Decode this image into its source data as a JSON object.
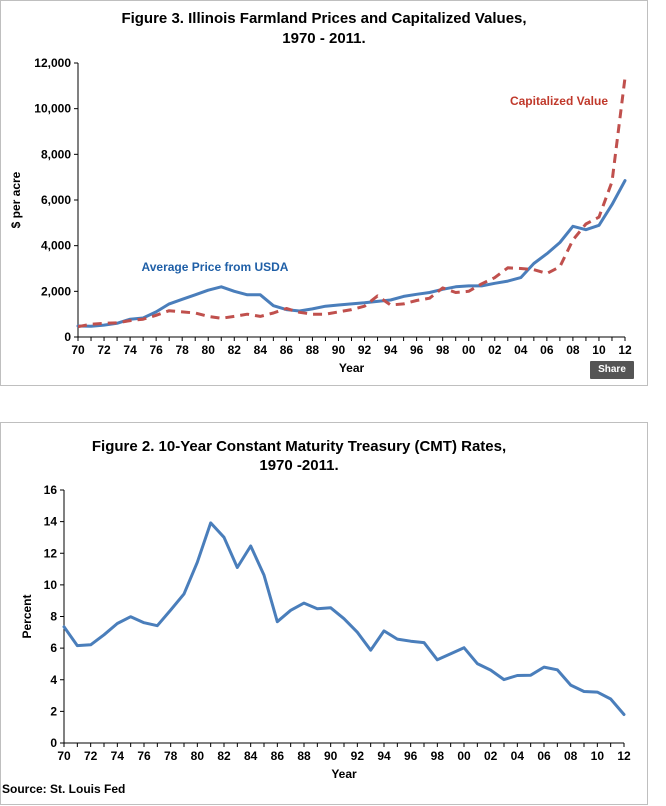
{
  "chart_data": [
    {
      "type": "line",
      "title": "Figure 3.  Illinois Farmland Prices and Capitalized Values,",
      "subtitle": "1970 - 2011.",
      "xlabel": "Year",
      "ylabel": "$ per acre",
      "xlim": [
        70,
        112
      ],
      "ylim": [
        0,
        12000
      ],
      "yticks": [
        "0",
        "2,000",
        "4,000",
        "6,000",
        "8,000",
        "10,000",
        "12,000"
      ],
      "xticks": [
        "70",
        "72",
        "74",
        "76",
        "78",
        "80",
        "82",
        "84",
        "86",
        "88",
        "90",
        "92",
        "94",
        "96",
        "98",
        "00",
        "02",
        "04",
        "06",
        "08",
        "10",
        "12"
      ],
      "series": [
        {
          "name": "Average Price from USDA",
          "color": "#4a7ebb",
          "dash": "solid",
          "x": [
            70,
            71,
            72,
            73,
            74,
            75,
            76,
            77,
            78,
            79,
            80,
            81,
            82,
            83,
            84,
            85,
            86,
            87,
            88,
            89,
            90,
            91,
            92,
            93,
            94,
            95,
            96,
            97,
            98,
            99,
            100,
            101,
            102,
            103,
            104,
            105,
            106,
            107,
            108,
            109,
            110,
            111,
            112
          ],
          "values": [
            480,
            470,
            520,
            600,
            780,
            830,
            1100,
            1450,
            1650,
            1850,
            2050,
            2200,
            2000,
            1850,
            1850,
            1370,
            1200,
            1140,
            1230,
            1350,
            1400,
            1450,
            1500,
            1560,
            1620,
            1780,
            1870,
            1950,
            2090,
            2200,
            2240,
            2240,
            2350,
            2450,
            2600,
            3220,
            3650,
            4140,
            4850,
            4700,
            4890,
            5800,
            6850
          ]
        },
        {
          "name": "Capitalized Value",
          "color": "#c0504d",
          "dash": "dashed",
          "x": [
            70,
            71,
            72,
            73,
            74,
            75,
            76,
            77,
            78,
            79,
            80,
            81,
            82,
            83,
            84,
            85,
            86,
            87,
            88,
            89,
            90,
            91,
            92,
            93,
            94,
            95,
            96,
            97,
            98,
            99,
            100,
            101,
            102,
            103,
            104,
            105,
            106,
            107,
            108,
            109,
            110,
            111,
            112
          ],
          "values": [
            450,
            560,
            600,
            620,
            720,
            780,
            950,
            1150,
            1100,
            1050,
            900,
            820,
            900,
            1000,
            900,
            1050,
            1250,
            1080,
            1000,
            1000,
            1100,
            1200,
            1350,
            1800,
            1400,
            1450,
            1600,
            1700,
            2150,
            1950,
            2000,
            2330,
            2600,
            3030,
            3000,
            2950,
            2780,
            3080,
            4250,
            4950,
            5250,
            6800,
            11350
          ]
        }
      ],
      "annotations": [
        "Average Price from USDA",
        "Capitalized Value"
      ],
      "grid": false,
      "legend": "none"
    },
    {
      "type": "line",
      "title": "Figure 2.  10-Year Constant Maturity Treasury (CMT) Rates,",
      "subtitle": "1970 -2011.",
      "xlabel": "Year",
      "ylabel": "Percent",
      "xlim": [
        70,
        112
      ],
      "ylim": [
        0,
        16
      ],
      "yticks": [
        "0",
        "2",
        "4",
        "6",
        "8",
        "10",
        "12",
        "14",
        "16"
      ],
      "xticks": [
        "70",
        "72",
        "74",
        "76",
        "78",
        "80",
        "82",
        "84",
        "86",
        "88",
        "90",
        "92",
        "94",
        "96",
        "98",
        "00",
        "02",
        "04",
        "06",
        "08",
        "10",
        "12"
      ],
      "series": [
        {
          "color": "#4a7ebb",
          "dash": "solid",
          "x": [
            70,
            71,
            72,
            73,
            74,
            75,
            76,
            77,
            78,
            79,
            80,
            81,
            82,
            83,
            84,
            85,
            86,
            87,
            88,
            89,
            90,
            91,
            92,
            93,
            94,
            95,
            96,
            97,
            98,
            99,
            100,
            101,
            102,
            103,
            104,
            105,
            106,
            107,
            108,
            109,
            110,
            111,
            112
          ],
          "values": [
            7.35,
            6.16,
            6.21,
            6.84,
            7.56,
            7.99,
            7.61,
            7.42,
            8.41,
            9.43,
            11.43,
            13.92,
            13.01,
            11.1,
            12.46,
            10.62,
            7.67,
            8.39,
            8.85,
            8.49,
            8.55,
            7.86,
            7.01,
            5.87,
            7.09,
            6.57,
            6.44,
            6.35,
            5.26,
            5.65,
            6.03,
            5.02,
            4.61,
            4.01,
            4.27,
            4.29,
            4.8,
            4.63,
            3.66,
            3.26,
            3.22,
            2.78,
            1.8
          ]
        }
      ],
      "grid": false,
      "legend": "none"
    }
  ],
  "share_label": "Share",
  "source_label": "Source: St. Louis Fed"
}
